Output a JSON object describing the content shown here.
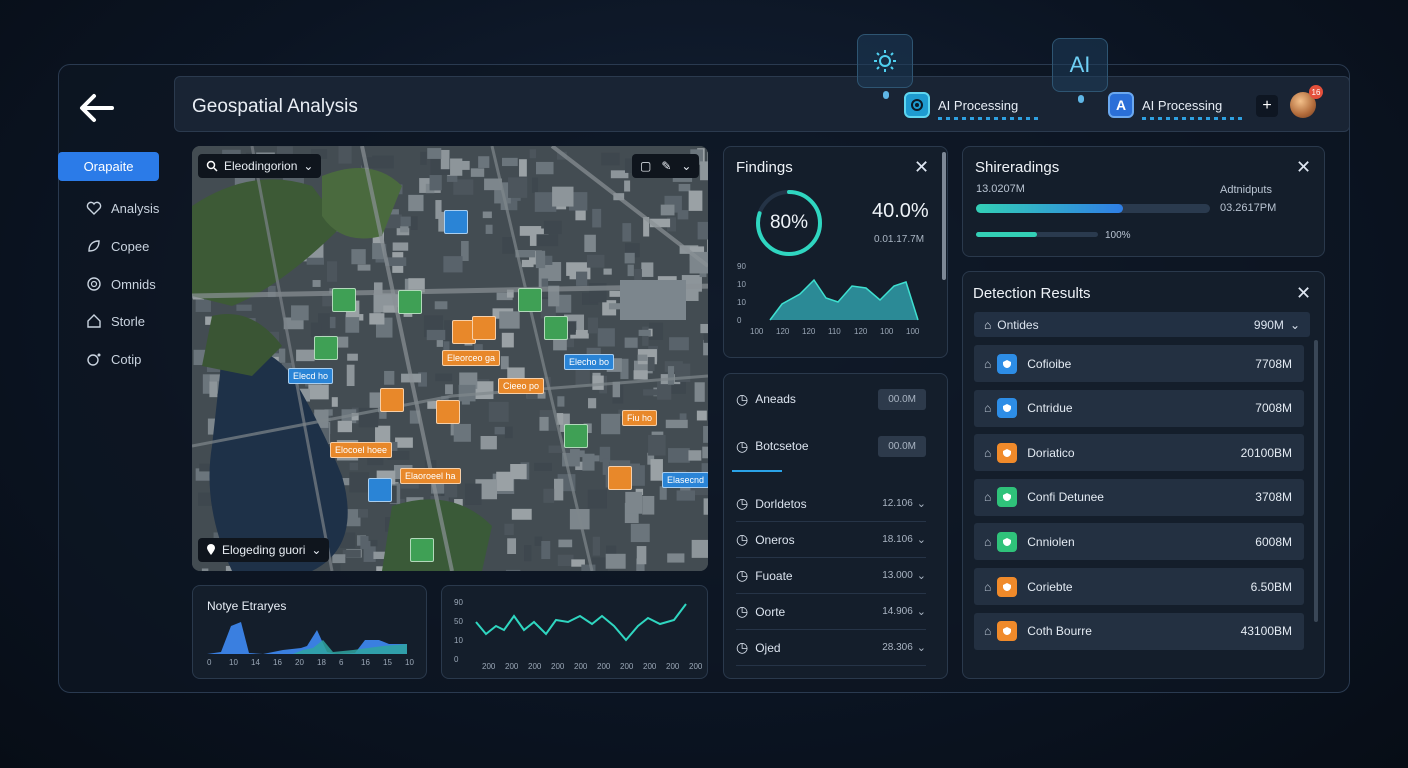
{
  "header": {
    "title": "Geospatial Analysis",
    "ai_status": [
      {
        "label": "AI Processing"
      },
      {
        "label": "AI Processing"
      }
    ],
    "float_ai_label": "AI",
    "notification_count": "16"
  },
  "sidebar": {
    "active": "Orapaite",
    "items": [
      {
        "label": "Analysis",
        "icon": "heart-icon"
      },
      {
        "label": "Copee",
        "icon": "leaf-icon"
      },
      {
        "label": "Omnids",
        "icon": "globe-icon"
      },
      {
        "label": "Storle",
        "icon": "home-icon"
      },
      {
        "label": "Cotip",
        "icon": "bubble-icon"
      }
    ]
  },
  "map": {
    "search_label": "Eleodingorion",
    "location_label": "Elogeding guori",
    "annotations": [
      {
        "t": "",
        "c": "b"
      },
      {
        "t": "",
        "c": "g"
      },
      {
        "t": "",
        "c": "g"
      },
      {
        "t": "",
        "c": "g"
      },
      {
        "t": "",
        "c": "g"
      },
      {
        "t": "",
        "c": "g"
      },
      {
        "t": "Elecd ho",
        "c": "b"
      },
      {
        "t": "Eleorceo ga",
        "c": "o"
      },
      {
        "t": "Elecho bo",
        "c": "b"
      },
      {
        "t": "Cieeo po",
        "c": "o"
      },
      {
        "t": "Fiu ho",
        "c": "o"
      },
      {
        "t": "Elocoel hoee",
        "c": "o"
      },
      {
        "t": "Elaoroeel ha",
        "c": "o"
      },
      {
        "t": "Elasecnd",
        "c": "b"
      },
      {
        "t": "",
        "c": "o"
      },
      {
        "t": "",
        "c": "o"
      },
      {
        "t": "",
        "c": "o"
      },
      {
        "t": "",
        "c": "o"
      },
      {
        "t": "",
        "c": "g"
      },
      {
        "t": "",
        "c": "o"
      },
      {
        "t": "",
        "c": "b"
      },
      {
        "t": "",
        "c": "g"
      }
    ]
  },
  "charts": {
    "bottom_left": {
      "title": "Notye Etraryes",
      "x_ticks": [
        "0",
        "10",
        "14",
        "16",
        "20",
        "18",
        "6",
        "16",
        "15",
        "10"
      ]
    },
    "bottom_mid": {
      "y_ticks": [
        "90",
        "50",
        "10",
        "0"
      ],
      "x_ticks": [
        "200",
        "200",
        "200",
        "200",
        "200",
        "200",
        "200",
        "200",
        "200",
        "200"
      ]
    }
  },
  "findings": {
    "title": "Findings",
    "ring": "80%",
    "percent": "40.0%",
    "sub": "0.01.17.7M",
    "y_ticks": [
      "90",
      "10",
      "10",
      "0"
    ],
    "x_ticks": [
      "100",
      "120",
      "120",
      "110",
      "120",
      "100",
      "100"
    ]
  },
  "list": {
    "rows": [
      {
        "label": "Aneads",
        "value": "00.0M",
        "type": "box"
      },
      {
        "label": "Botcsetoe",
        "value": "00.0M",
        "type": "box"
      },
      {
        "label": "Dorldetos",
        "value": "12.106"
      },
      {
        "label": "Oneros",
        "value": "18.106"
      },
      {
        "label": "Fuoate",
        "value": "13.000"
      },
      {
        "label": "Oorte",
        "value": "14.906"
      },
      {
        "label": "Ojed",
        "value": "28.306"
      }
    ]
  },
  "shiteradings": {
    "title": "Shireradings",
    "left_val": "13.0207M",
    "right_label": "Adtnidputs",
    "right_val": "03.2617PM",
    "bar2_label": "100%",
    "bar1_fill": 0.63,
    "bar2_fill": 0.5
  },
  "detection": {
    "title": "Detection Results",
    "filter_label": "Ontides",
    "filter_value": "990M",
    "rows": [
      {
        "name": "Cofioibe",
        "value": "7708M",
        "color": "#2d8de6"
      },
      {
        "name": "Cntridue",
        "value": "7008M",
        "color": "#2d8de6"
      },
      {
        "name": "Doriatico",
        "value": "20100BM",
        "color": "#f08a2a"
      },
      {
        "name": "Confi Detunee",
        "value": "3708M",
        "color": "#2fc27a"
      },
      {
        "name": "Cnniolen",
        "value": "6008M",
        "color": "#2fc27a"
      },
      {
        "name": "Coriebte",
        "value": "6.50BM",
        "color": "#f08a2a"
      },
      {
        "name": "Coth Bourre",
        "value": "43100BM",
        "color": "#f08a2a"
      }
    ]
  }
}
